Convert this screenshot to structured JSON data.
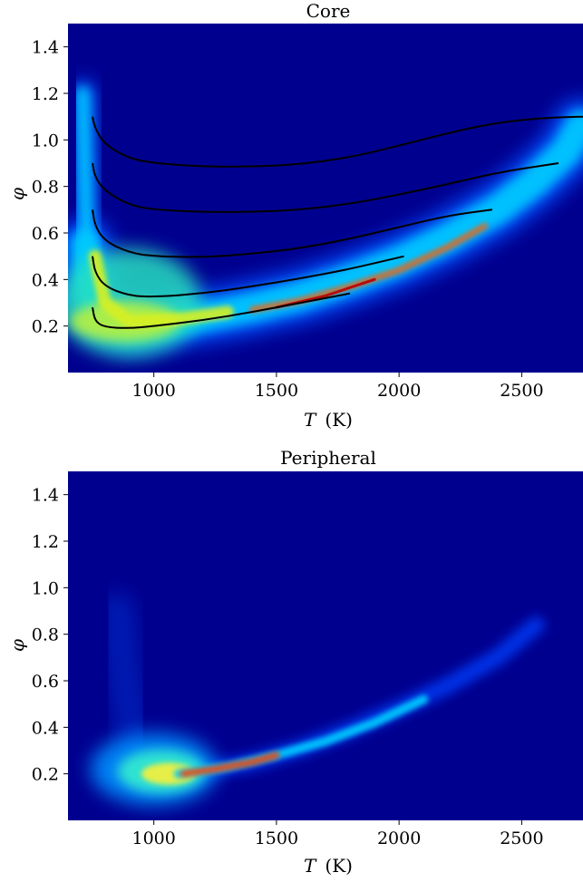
{
  "chart_data": [
    {
      "type": "heatmap",
      "title": "Core",
      "xlabel_var": "T",
      "xlabel_unit": "(K)",
      "ylabel": "φ",
      "xlim": [
        650,
        2750
      ],
      "ylim": [
        0.0,
        1.5
      ],
      "xticks": [
        1000,
        1500,
        2000,
        2500
      ],
      "yticks": [
        0.2,
        0.4,
        0.6,
        0.8,
        1.0,
        1.2,
        1.4
      ],
      "xtick_labels": [
        "1000",
        "1500",
        "2000",
        "2500"
      ],
      "ytick_labels": [
        "0.2",
        "0.4",
        "0.6",
        "0.8",
        "1.0",
        "1.2",
        "1.4"
      ],
      "colormap": "jet",
      "background_color": "#00008f",
      "density_description": "band rising from phi~0.2 at T~900 to phi~1.0 at T~2650, plus vertical wall near T~720",
      "curves": [
        {
          "color": "#000000",
          "points": [
            [
              750,
              0.28
            ],
            [
              760,
              0.22
            ],
            [
              800,
              0.195
            ],
            [
              900,
              0.19
            ],
            [
              1000,
              0.2
            ],
            [
              1200,
              0.225
            ],
            [
              1400,
              0.26
            ],
            [
              1600,
              0.3
            ],
            [
              1800,
              0.34
            ]
          ]
        },
        {
          "color": "#000000",
          "points": [
            [
              750,
              0.5
            ],
            [
              760,
              0.43
            ],
            [
              800,
              0.37
            ],
            [
              900,
              0.33
            ],
            [
              1000,
              0.325
            ],
            [
              1200,
              0.34
            ],
            [
              1400,
              0.37
            ],
            [
              1600,
              0.405
            ],
            [
              1800,
              0.445
            ],
            [
              2020,
              0.5
            ]
          ]
        },
        {
          "color": "#000000",
          "points": [
            [
              750,
              0.7
            ],
            [
              760,
              0.63
            ],
            [
              800,
              0.565
            ],
            [
              900,
              0.515
            ],
            [
              1000,
              0.5
            ],
            [
              1200,
              0.495
            ],
            [
              1400,
              0.51
            ],
            [
              1600,
              0.535
            ],
            [
              1800,
              0.575
            ],
            [
              2000,
              0.625
            ],
            [
              2200,
              0.675
            ],
            [
              2380,
              0.7
            ]
          ]
        },
        {
          "color": "#000000",
          "points": [
            [
              750,
              0.9
            ],
            [
              760,
              0.84
            ],
            [
              800,
              0.78
            ],
            [
              900,
              0.72
            ],
            [
              1000,
              0.7
            ],
            [
              1200,
              0.69
            ],
            [
              1400,
              0.69
            ],
            [
              1600,
              0.7
            ],
            [
              1800,
              0.725
            ],
            [
              2000,
              0.765
            ],
            [
              2200,
              0.81
            ],
            [
              2400,
              0.86
            ],
            [
              2650,
              0.9
            ]
          ]
        },
        {
          "color": "#000000",
          "points": [
            [
              750,
              1.1
            ],
            [
              760,
              1.05
            ],
            [
              800,
              0.98
            ],
            [
              900,
              0.92
            ],
            [
              1000,
              0.9
            ],
            [
              1200,
              0.885
            ],
            [
              1400,
              0.885
            ],
            [
              1600,
              0.895
            ],
            [
              1800,
              0.925
            ],
            [
              2000,
              0.975
            ],
            [
              2200,
              1.03
            ],
            [
              2400,
              1.075
            ],
            [
              2600,
              1.095
            ],
            [
              2750,
              1.1
            ]
          ]
        }
      ]
    },
    {
      "type": "heatmap",
      "title": "Peripheral",
      "xlabel_var": "T",
      "xlabel_unit": "(K)",
      "ylabel": "φ",
      "xlim": [
        650,
        2750
      ],
      "ylim": [
        0.0,
        1.5
      ],
      "xticks": [
        1000,
        1500,
        2000,
        2500
      ],
      "yticks": [
        0.2,
        0.4,
        0.6,
        0.8,
        1.0,
        1.2,
        1.4
      ],
      "xtick_labels": [
        "1000",
        "1500",
        "2000",
        "2500"
      ],
      "ytick_labels": [
        "0.2",
        "0.4",
        "0.6",
        "0.8",
        "1.0",
        "1.2",
        "1.4"
      ],
      "colormap": "jet",
      "background_color": "#00008f",
      "density_description": "thin band rising from phi~0.2 at T~1100 to phi~0.85 at T~2550, blob near T~1000 phi~0.2",
      "curves": []
    }
  ]
}
